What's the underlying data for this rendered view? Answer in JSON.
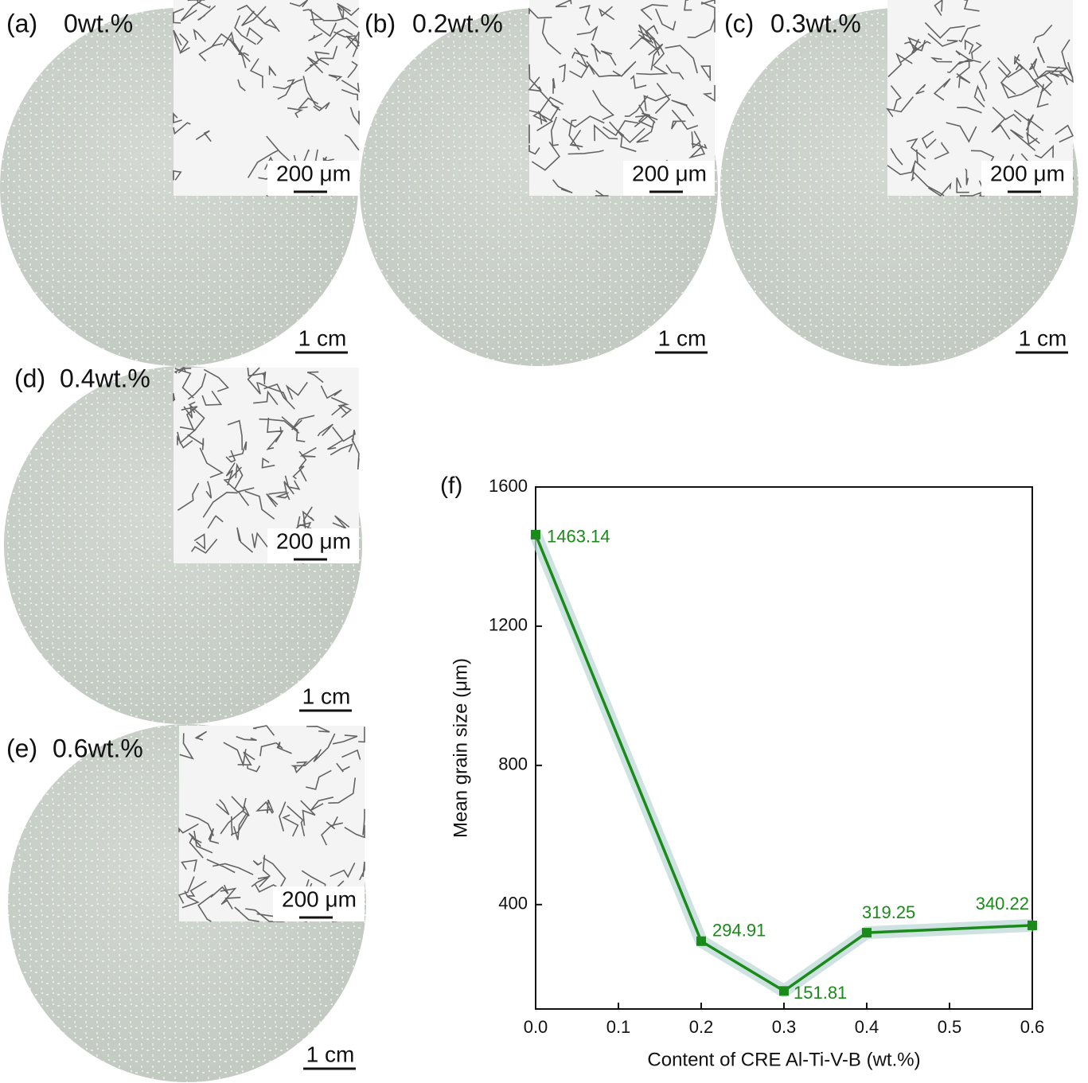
{
  "panels": [
    {
      "label": "(a)",
      "title": "0wt.%",
      "inset_scale": "200 μm",
      "scale": "1 cm"
    },
    {
      "label": "(b)",
      "title": "0.2wt.%",
      "inset_scale": "200 μm",
      "scale": "1 cm"
    },
    {
      "label": "(c)",
      "title": "0.3wt.%",
      "inset_scale": "200 μm",
      "scale": "1 cm"
    },
    {
      "label": "(d)",
      "title": "0.4wt.%",
      "inset_scale": "200 μm",
      "scale": "1 cm"
    },
    {
      "label": "(e)",
      "title": "0.6wt.%",
      "inset_scale": "200 μm",
      "scale": "1 cm"
    }
  ],
  "chart_data": {
    "type": "line",
    "label": "(f)",
    "xlabel": "Content of CRE Al-Ti-V-B (wt.%)",
    "ylabel": "Mean grain size (μm)",
    "x": [
      0,
      0.2,
      0.3,
      0.4,
      0.6
    ],
    "values": [
      1463.14,
      294.91,
      151.81,
      319.25,
      340.22
    ],
    "color": "#1a8a1a",
    "xlim": [
      0,
      0.6
    ],
    "xticks": [
      {
        "value": 0,
        "label": "0.0"
      },
      0.1,
      0.2,
      0.3,
      0.4,
      0.5,
      0.6
    ],
    "ylim": [
      100,
      1600
    ],
    "yticks": [
      400,
      800,
      1200,
      1600
    ],
    "grid": false
  }
}
